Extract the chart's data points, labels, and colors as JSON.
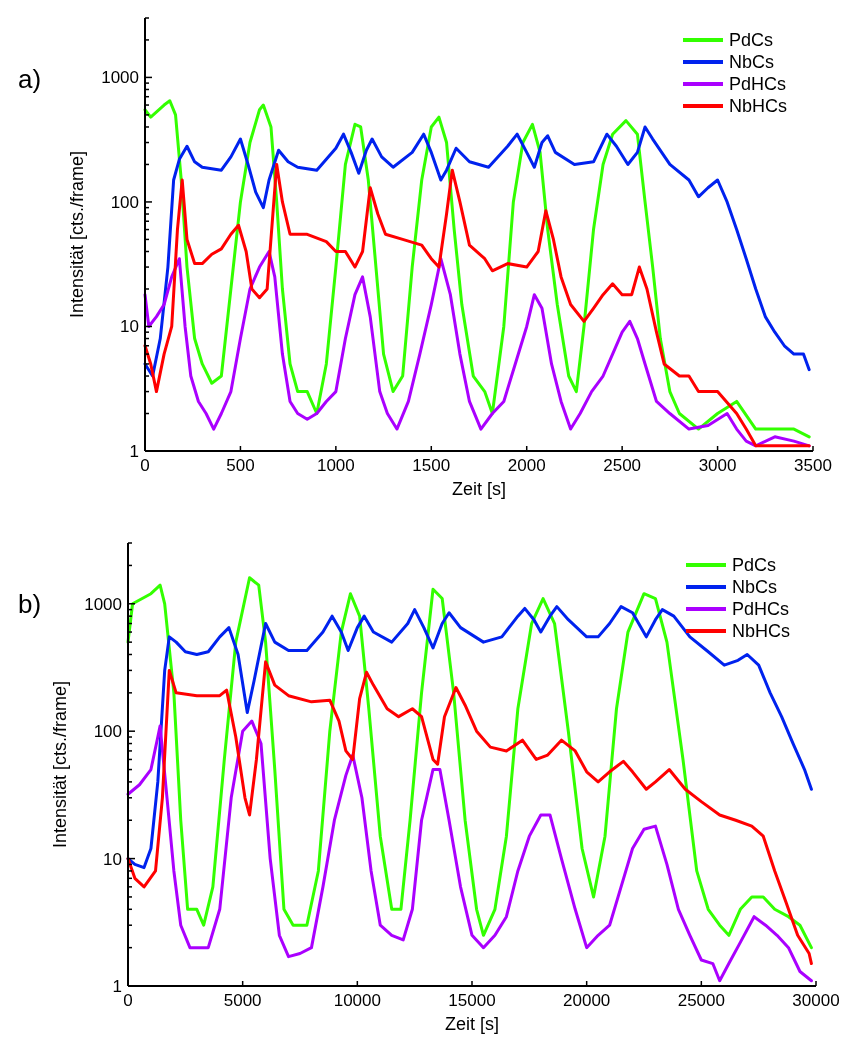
{
  "chart_data": [
    {
      "type": "line",
      "xlabel": "Zeit [s]",
      "ylabel": "Intensität [cts./frame]",
      "annotations": [
        "a)"
      ],
      "log": "y",
      "legend": "top right",
      "grid": false,
      "line_style": "solid",
      "marker": "none",
      "xlim": [
        0,
        3500
      ],
      "xticks": [
        0,
        500,
        1000,
        1500,
        2000,
        2500,
        3000,
        3500
      ],
      "ylim": [
        1,
        3000
      ],
      "yticks": [
        1,
        {
          "value": 2,
          "label": null
        },
        {
          "value": 3,
          "label": null
        },
        {
          "value": 4,
          "label": null
        },
        {
          "value": 5,
          "label": null
        },
        {
          "value": 6,
          "label": null
        },
        {
          "value": 7,
          "label": null
        },
        {
          "value": 8,
          "label": null
        },
        {
          "value": 9,
          "label": null
        },
        10,
        {
          "value": 20,
          "label": null
        },
        {
          "value": 30,
          "label": null
        },
        {
          "value": 40,
          "label": null
        },
        {
          "value": 50,
          "label": null
        },
        {
          "value": 60,
          "label": null
        },
        {
          "value": 70,
          "label": null
        },
        {
          "value": 80,
          "label": null
        },
        {
          "value": 90,
          "label": null
        },
        100,
        {
          "value": 200,
          "label": null
        },
        {
          "value": 300,
          "label": null
        },
        {
          "value": 400,
          "label": null
        },
        {
          "value": 500,
          "label": null
        },
        {
          "value": 600,
          "label": null
        },
        {
          "value": 700,
          "label": null
        },
        {
          "value": 800,
          "label": null
        },
        {
          "value": 900,
          "label": null
        },
        1000,
        {
          "value": 2000,
          "label": null
        },
        {
          "value": 3000,
          "label": null
        }
      ],
      "series": [
        {
          "name": "PdCs",
          "color": "#33ff00",
          "x": [
            0,
            30,
            100,
            130,
            160,
            190,
            220,
            260,
            300,
            350,
            400,
            450,
            500,
            550,
            600,
            620,
            660,
            690,
            720,
            760,
            800,
            850,
            900,
            950,
            1000,
            1050,
            1100,
            1130,
            1170,
            1210,
            1250,
            1300,
            1350,
            1400,
            1450,
            1500,
            1540,
            1580,
            1620,
            1660,
            1720,
            1780,
            1820,
            1880,
            1930,
            1980,
            2030,
            2070,
            2110,
            2160,
            2220,
            2260,
            2300,
            2350,
            2400,
            2450,
            2520,
            2580,
            2620,
            2660,
            2700,
            2750,
            2800,
            2900,
            3000,
            3100,
            3200,
            3300,
            3400,
            3480
          ],
          "values": [
            550,
            480,
            600,
            650,
            500,
            150,
            30,
            8,
            5,
            3.5,
            4,
            20,
            100,
            300,
            550,
            600,
            400,
            100,
            20,
            5,
            3,
            3,
            2,
            5,
            30,
            200,
            420,
            400,
            150,
            30,
            6,
            3,
            4,
            30,
            150,
            400,
            480,
            300,
            60,
            15,
            4,
            3,
            2,
            10,
            100,
            300,
            420,
            250,
            60,
            15,
            4,
            3,
            10,
            60,
            200,
            350,
            450,
            350,
            100,
            30,
            8,
            3,
            2,
            1.5,
            2,
            2.5,
            1.5,
            1.5,
            1.5,
            1.3
          ]
        },
        {
          "name": "NbCs",
          "color": "#0022ee",
          "x": [
            0,
            40,
            80,
            120,
            150,
            180,
            220,
            260,
            300,
            400,
            450,
            500,
            540,
            580,
            620,
            650,
            700,
            750,
            800,
            900,
            1000,
            1040,
            1080,
            1120,
            1160,
            1190,
            1240,
            1300,
            1400,
            1460,
            1500,
            1550,
            1580,
            1630,
            1700,
            1800,
            1900,
            1950,
            2000,
            2040,
            2080,
            2110,
            2150,
            2250,
            2350,
            2420,
            2470,
            2530,
            2580,
            2620,
            2660,
            2750,
            2850,
            2900,
            2950,
            3000,
            3050,
            3100,
            3150,
            3200,
            3250,
            3300,
            3350,
            3400,
            3450,
            3480
          ],
          "values": [
            5,
            4,
            8,
            30,
            150,
            220,
            280,
            210,
            190,
            180,
            230,
            320,
            200,
            120,
            90,
            150,
            260,
            210,
            190,
            180,
            270,
            350,
            250,
            170,
            260,
            320,
            230,
            190,
            250,
            350,
            250,
            150,
            180,
            270,
            210,
            190,
            280,
            350,
            250,
            190,
            300,
            340,
            250,
            200,
            210,
            350,
            280,
            200,
            250,
            400,
            320,
            200,
            150,
            110,
            130,
            150,
            100,
            60,
            35,
            20,
            12,
            9,
            7,
            6,
            6,
            4.5
          ]
        },
        {
          "name": "PdHCs",
          "color": "#aa00ff",
          "x": [
            0,
            20,
            60,
            100,
            140,
            180,
            210,
            240,
            280,
            320,
            360,
            400,
            450,
            500,
            550,
            600,
            650,
            680,
            720,
            760,
            800,
            850,
            900,
            950,
            1000,
            1050,
            1100,
            1140,
            1180,
            1230,
            1270,
            1320,
            1380,
            1440,
            1500,
            1550,
            1600,
            1650,
            1700,
            1760,
            1820,
            1880,
            1940,
            2000,
            2040,
            2080,
            2130,
            2180,
            2230,
            2280,
            2340,
            2400,
            2450,
            2500,
            2540,
            2580,
            2620,
            2680,
            2750,
            2850,
            2950,
            3050,
            3100,
            3150,
            3200,
            3300,
            3400,
            3480
          ],
          "values": [
            18,
            10,
            12,
            15,
            25,
            35,
            10,
            4,
            2.5,
            2,
            1.5,
            2,
            3,
            8,
            20,
            30,
            40,
            25,
            6,
            2.5,
            2,
            1.8,
            2,
            2.5,
            3,
            8,
            18,
            25,
            12,
            3,
            2,
            1.5,
            2.5,
            6,
            15,
            35,
            18,
            6,
            2.5,
            1.5,
            2,
            2.5,
            5,
            10,
            18,
            14,
            5,
            2.5,
            1.5,
            2,
            3,
            4,
            6,
            9,
            11,
            8,
            5,
            2.5,
            2,
            1.5,
            1.6,
            2,
            1.5,
            1.2,
            1.1,
            1.3,
            1.2,
            1.1
          ]
        },
        {
          "name": "NbHCs",
          "color": "#ff0000",
          "x": [
            0,
            30,
            60,
            100,
            140,
            170,
            195,
            220,
            260,
            300,
            350,
            400,
            450,
            490,
            530,
            560,
            600,
            640,
            670,
            690,
            720,
            760,
            850,
            950,
            1000,
            1050,
            1100,
            1140,
            1180,
            1220,
            1260,
            1350,
            1450,
            1500,
            1540,
            1580,
            1610,
            1650,
            1700,
            1780,
            1820,
            1900,
            2000,
            2060,
            2100,
            2140,
            2180,
            2230,
            2300,
            2350,
            2400,
            2450,
            2500,
            2550,
            2590,
            2630,
            2680,
            2720,
            2800,
            2850,
            2900,
            3000,
            3100,
            3150,
            3200,
            3300,
            3480
          ],
          "values": [
            7,
            5,
            3,
            6,
            10,
            60,
            150,
            50,
            32,
            32,
            38,
            42,
            55,
            65,
            40,
            20,
            17,
            20,
            80,
            200,
            100,
            55,
            55,
            48,
            40,
            40,
            30,
            40,
            130,
            80,
            55,
            50,
            45,
            35,
            30,
            80,
            180,
            100,
            45,
            35,
            28,
            32,
            30,
            40,
            85,
            50,
            25,
            15,
            11,
            14,
            18,
            22,
            18,
            18,
            30,
            20,
            9,
            5,
            4,
            4,
            3,
            3,
            2,
            1.5,
            1.1,
            1.1,
            1.1
          ]
        }
      ]
    },
    {
      "type": "line",
      "xlabel": "Zeit [s]",
      "ylabel": "Intensität [cts./frame]",
      "annotations": [
        "b)"
      ],
      "log": "y",
      "legend": "top right",
      "grid": false,
      "line_style": "solid",
      "marker": "none",
      "xlim": [
        0,
        30000
      ],
      "xticks": [
        0,
        5000,
        10000,
        15000,
        20000,
        25000,
        30000
      ],
      "ylim": [
        1,
        3000
      ],
      "yticks": [
        1,
        {
          "value": 2,
          "label": null
        },
        {
          "value": 3,
          "label": null
        },
        {
          "value": 4,
          "label": null
        },
        {
          "value": 5,
          "label": null
        },
        {
          "value": 6,
          "label": null
        },
        {
          "value": 7,
          "label": null
        },
        {
          "value": 8,
          "label": null
        },
        {
          "value": 9,
          "label": null
        },
        10,
        {
          "value": 20,
          "label": null
        },
        {
          "value": 30,
          "label": null
        },
        {
          "value": 40,
          "label": null
        },
        {
          "value": 50,
          "label": null
        },
        {
          "value": 60,
          "label": null
        },
        {
          "value": 70,
          "label": null
        },
        {
          "value": 80,
          "label": null
        },
        {
          "value": 90,
          "label": null
        },
        100,
        {
          "value": 200,
          "label": null
        },
        {
          "value": 300,
          "label": null
        },
        {
          "value": 400,
          "label": null
        },
        {
          "value": 500,
          "label": null
        },
        {
          "value": 600,
          "label": null
        },
        {
          "value": 700,
          "label": null
        },
        {
          "value": 800,
          "label": null
        },
        {
          "value": 900,
          "label": null
        },
        1000,
        {
          "value": 2000,
          "label": null
        },
        {
          "value": 3000,
          "label": null
        }
      ],
      "series": [
        {
          "name": "PdCs",
          "color": "#33ff00",
          "x": [
            0,
            200,
            1000,
            1400,
            1600,
            2000,
            2300,
            2600,
            3000,
            3300,
            3700,
            4200,
            4700,
            5300,
            5700,
            6000,
            6400,
            6800,
            7200,
            7800,
            8300,
            8800,
            9300,
            9700,
            10100,
            10500,
            11000,
            11500,
            11900,
            12300,
            12800,
            13300,
            13700,
            14200,
            14700,
            15200,
            15500,
            16000,
            16500,
            17000,
            17600,
            18100,
            18600,
            19200,
            19800,
            20300,
            20800,
            21300,
            21800,
            22500,
            23000,
            23500,
            24200,
            24800,
            25300,
            25800,
            26200,
            26700,
            27200,
            27700,
            28200,
            28800,
            29300,
            29800
          ],
          "values": [
            500,
            1000,
            1200,
            1400,
            1000,
            200,
            20,
            4,
            4,
            3,
            6,
            60,
            500,
            1600,
            1400,
            500,
            50,
            4,
            3,
            3,
            8,
            100,
            600,
            1200,
            800,
            150,
            15,
            4,
            4,
            20,
            200,
            1300,
            1100,
            200,
            20,
            4,
            2.5,
            4,
            15,
            150,
            700,
            1100,
            700,
            100,
            12,
            5,
            15,
            150,
            600,
            1200,
            1100,
            500,
            60,
            8,
            4,
            3,
            2.5,
            4,
            5,
            5,
            4,
            3.5,
            3,
            2
          ]
        },
        {
          "name": "NbCs",
          "color": "#0022ee",
          "x": [
            0,
            300,
            700,
            1000,
            1300,
            1600,
            1800,
            2100,
            2500,
            3000,
            3500,
            4000,
            4400,
            4800,
            5200,
            5500,
            6000,
            6400,
            7000,
            7800,
            8500,
            8900,
            9300,
            9600,
            10000,
            10300,
            10700,
            11500,
            12200,
            12500,
            12900,
            13300,
            13700,
            14000,
            14500,
            15500,
            16300,
            17000,
            17300,
            17700,
            18000,
            18400,
            18700,
            19200,
            20000,
            20500,
            21000,
            21500,
            22000,
            22600,
            23000,
            23300,
            23800,
            24500,
            25300,
            26000,
            26600,
            27000,
            27500,
            28000,
            28500,
            29000,
            29500,
            29800
          ],
          "values": [
            10,
            9,
            8.5,
            12,
            40,
            300,
            550,
            500,
            420,
            400,
            420,
            550,
            650,
            400,
            140,
            250,
            700,
            500,
            430,
            430,
            600,
            800,
            600,
            430,
            650,
            800,
            600,
            500,
            700,
            900,
            650,
            450,
            700,
            850,
            650,
            500,
            550,
            800,
            920,
            750,
            600,
            800,
            950,
            750,
            550,
            550,
            700,
            950,
            850,
            550,
            750,
            900,
            800,
            550,
            420,
            330,
            360,
            400,
            330,
            200,
            130,
            80,
            50,
            35
          ]
        },
        {
          "name": "PdHCs",
          "color": "#aa00ff",
          "x": [
            0,
            500,
            1000,
            1300,
            1400,
            1700,
            2000,
            2300,
            2700,
            3000,
            3500,
            4000,
            4500,
            5000,
            5400,
            5800,
            6200,
            6600,
            7000,
            7500,
            8000,
            8500,
            9000,
            9500,
            9800,
            10200,
            10600,
            11000,
            11500,
            12000,
            12400,
            12800,
            13300,
            13600,
            14000,
            14500,
            15000,
            15500,
            16000,
            16500,
            17000,
            17500,
            18000,
            18400,
            18900,
            19500,
            20000,
            20500,
            21000,
            21500,
            22000,
            22500,
            23000,
            23500,
            24000,
            24500,
            25000,
            25500,
            25800,
            26200,
            26700,
            27300,
            27800,
            28300,
            28800,
            29300,
            29800
          ],
          "values": [
            32,
            38,
            50,
            90,
            110,
            30,
            8,
            3,
            2,
            2,
            2,
            4,
            30,
            100,
            120,
            80,
            10,
            2.5,
            1.7,
            1.8,
            2,
            6,
            20,
            45,
            65,
            30,
            8,
            3,
            2.5,
            2.3,
            4,
            20,
            50,
            50,
            20,
            6,
            2.5,
            2,
            2.5,
            3.5,
            8,
            15,
            22,
            22,
            10,
            4,
            2,
            2.5,
            3,
            6,
            12,
            17,
            18,
            9,
            4,
            2.5,
            1.6,
            1.5,
            1.1,
            1.5,
            2.2,
            3.5,
            3,
            2.5,
            2,
            1.3,
            1.1
          ]
        },
        {
          "name": "NbHCs",
          "color": "#ff0000",
          "x": [
            0,
            300,
            700,
            1200,
            1500,
            1800,
            2100,
            3000,
            4000,
            4300,
            4700,
            5100,
            5300,
            5600,
            6000,
            6400,
            7000,
            8000,
            8800,
            9200,
            9500,
            9800,
            10100,
            10400,
            10700,
            11300,
            11800,
            12400,
            12800,
            13300,
            13500,
            13800,
            14300,
            14700,
            15200,
            15800,
            16500,
            17200,
            17800,
            18300,
            18900,
            19500,
            20000,
            20500,
            21000,
            21600,
            22000,
            22600,
            23000,
            23600,
            24300,
            25000,
            25800,
            26500,
            27200,
            27700,
            28200,
            28700,
            29200,
            29700,
            29800
          ],
          "values": [
            10,
            7,
            6,
            8,
            30,
            300,
            200,
            190,
            190,
            210,
            90,
            30,
            22,
            60,
            350,
            230,
            190,
            170,
            175,
            120,
            70,
            60,
            180,
            290,
            230,
            150,
            130,
            150,
            130,
            60,
            55,
            130,
            220,
            160,
            100,
            75,
            70,
            85,
            60,
            65,
            85,
            70,
            48,
            40,
            48,
            58,
            48,
            35,
            40,
            50,
            35,
            28,
            22,
            20,
            18,
            15,
            8,
            4.5,
            2.5,
            1.8,
            1.5
          ]
        }
      ]
    }
  ]
}
